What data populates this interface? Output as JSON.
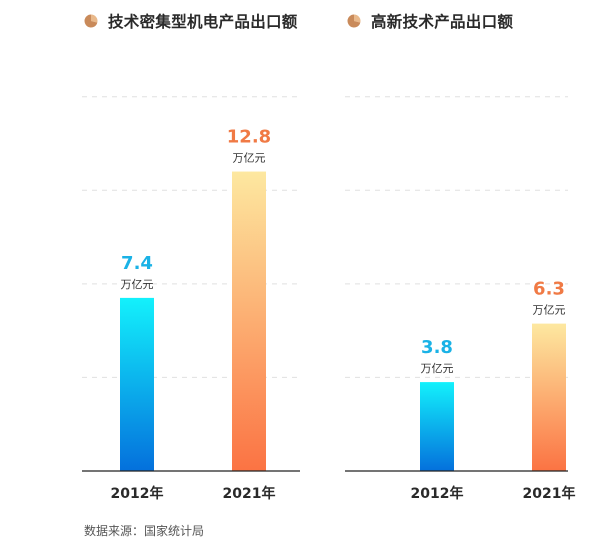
{
  "chart_data": [
    {
      "type": "bar",
      "title": "技术密集型机电产品出口额",
      "categories": [
        "2012年",
        "2021年"
      ],
      "values": [
        7.4,
        12.8
      ],
      "value_labels": [
        "7.4",
        "12.8"
      ],
      "unit": "万亿元",
      "ylim": [
        0,
        16.5
      ],
      "grid_values": [
        4,
        8,
        12,
        16
      ],
      "grid": true,
      "xlabel": "",
      "ylabel": ""
    },
    {
      "type": "bar",
      "title": "高新技术产品出口额",
      "categories": [
        "2012年",
        "2021年"
      ],
      "values": [
        3.8,
        6.3
      ],
      "value_labels": [
        "3.8",
        "6.3"
      ],
      "unit": "万亿元",
      "ylim": [
        0,
        16.5
      ],
      "grid_values": [
        4,
        8,
        12,
        16
      ],
      "grid": true,
      "xlabel": "",
      "ylabel": ""
    }
  ],
  "source": "数据来源：国家统计局",
  "colors": {
    "label_2012": "#1ab2e6",
    "label_2021": "#f07a45",
    "grad_2012_top": "#13f1fc",
    "grad_2012_bottom": "#0470dc",
    "grad_2021_top": "#fde8a0",
    "grad_2021_bottom": "#fb7343",
    "grid": "#e0e0e0",
    "axis": "#222222"
  }
}
